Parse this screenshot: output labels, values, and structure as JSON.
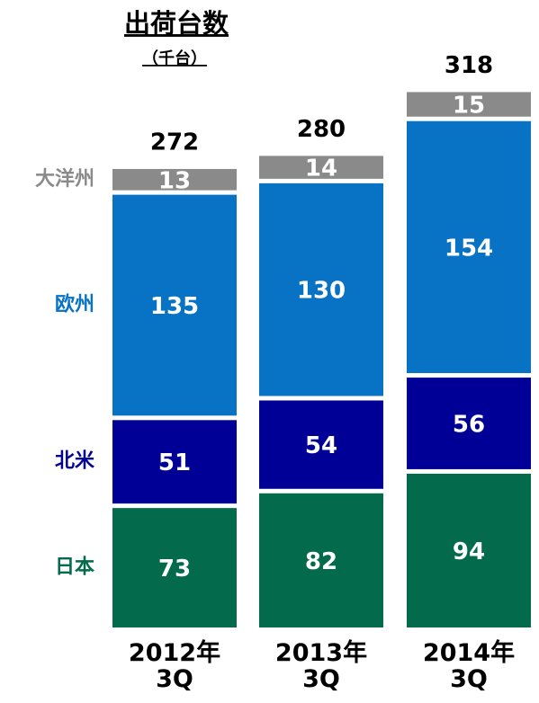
{
  "chart_data": {
    "type": "stacked_bar",
    "title": "出荷台数",
    "subtitle": "（千台）",
    "categories": [
      "2012年\n3Q",
      "2013年\n3Q",
      "2014年\n3Q"
    ],
    "series": [
      {
        "name": "日本",
        "color": "#046a4c",
        "values": [
          73,
          82,
          94
        ]
      },
      {
        "name": "北米",
        "color": "#000096",
        "values": [
          51,
          54,
          56
        ]
      },
      {
        "name": "欧州",
        "color": "#0872c4",
        "values": [
          135,
          130,
          154
        ]
      },
      {
        "name": "大洋州",
        "color": "#8a8a8a",
        "values": [
          13,
          14,
          15
        ]
      }
    ],
    "totals": [
      272,
      280,
      318
    ]
  }
}
